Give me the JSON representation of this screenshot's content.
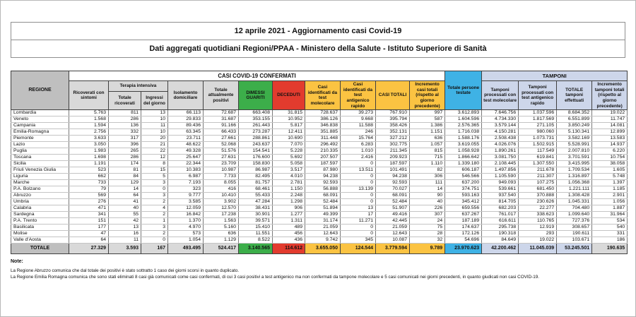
{
  "title": {
    "line1": "12 aprile 2021 - Aggiornamento casi Covid-19",
    "line2": "Dati aggregati quotidiani Regioni/PPAA - Ministero della Salute - Istituto Superiore di Sanità"
  },
  "colors": {
    "green": "#3cae4a",
    "red": "#e23b2e",
    "yellow": "#fbc342",
    "blue": "#3fb2e5",
    "light_blue": "#cdd6ea",
    "grey_header": "#bfbfbf",
    "grey_light": "#d9d9d9"
  },
  "table": {
    "band_confermati": "CASI COVID-19 CONFERMATI",
    "band_tamponi": "TAMPONI",
    "headers": {
      "regione": "REGIONE",
      "ricoverati": "Ricoverati con sintomi",
      "terapia_intensiva": "Terapia intensiva",
      "ti_totale": "Totale ricoverati",
      "ti_ingressi": "Ingressi del giorno",
      "isolamento": "Isolamento domiciliare",
      "attualmente_positivi": "Totale attualmente positivi",
      "dimessi": "DIMESSI GUARITI",
      "deceduti": "DECEDUTI",
      "casi_molecolare": "Casi identificati da test molecolare",
      "casi_antigenico": "Casi identificati da test antigenico rapido",
      "casi_totali": "CASI TOTALI",
      "incremento_casi": "Incremento casi totali (rispetto al giorno precedente)",
      "persone_testate": "Totale persone testate",
      "tamponi_molecolare": "Tamponi processati con test molecolare",
      "tamponi_antigenico": "Tamponi processati con test antigenico rapido",
      "tamponi_totale": "TOTALE tamponi effettuati",
      "incremento_tamponi": "Incremento tamponi totali (rispetto al giorno precedente)"
    },
    "rows": [
      [
        "Lombardia",
        "5.763",
        "811",
        "13",
        "66.113",
        "72.687",
        "663.408",
        "31.815",
        "728.637",
        "39.273",
        "767.910",
        "997",
        "3.612.893",
        "7.646.756",
        "1.037.596",
        "8.684.352",
        "19.022"
      ],
      [
        "Veneto",
        "1.568",
        "286",
        "10",
        "29.833",
        "31.687",
        "353.155",
        "10.952",
        "386.126",
        "9.668",
        "395.794",
        "587",
        "1.604.596",
        "4.734.330",
        "1.817.569",
        "6.551.899",
        "11.747"
      ],
      [
        "Campania",
        "1.594",
        "136",
        "11",
        "89.436",
        "91.166",
        "261.443",
        "5.817",
        "346.838",
        "11.588",
        "358.426",
        "1.386",
        "2.576.365",
        "3.579.144",
        "271.105",
        "3.850.249",
        "14.081"
      ],
      [
        "Emilia-Romagna",
        "2.756",
        "332",
        "10",
        "63.345",
        "66.433",
        "273.287",
        "12.411",
        "351.885",
        "246",
        "352.131",
        "1.151",
        "1.716.038",
        "4.150.281",
        "980.060",
        "5.130.341",
        "12.899"
      ],
      [
        "Piemonte",
        "3.633",
        "317",
        "20",
        "23.711",
        "27.661",
        "288.861",
        "10.690",
        "311.448",
        "15.764",
        "327.212",
        "636",
        "1.588.176",
        "2.508.438",
        "1.073.731",
        "3.582.169",
        "13.583"
      ],
      [
        "Lazio",
        "3.050",
        "396",
        "21",
        "48.622",
        "52.068",
        "243.637",
        "7.070",
        "296.492",
        "6.283",
        "302.775",
        "1.057",
        "3.619.055",
        "4.026.076",
        "1.502.915",
        "5.528.991",
        "14.937"
      ],
      [
        "Puglia",
        "1.983",
        "265",
        "22",
        "49.328",
        "51.576",
        "154.541",
        "5.228",
        "210.335",
        "1.010",
        "211.345",
        "815",
        "1.058.928",
        "1.890.261",
        "117.549",
        "2.007.810",
        "6.220"
      ],
      [
        "Toscana",
        "1.698",
        "286",
        "12",
        "25.647",
        "27.631",
        "176.600",
        "5.692",
        "207.507",
        "2.416",
        "209.923",
        "715",
        "1.866.642",
        "3.081.750",
        "619.841",
        "3.701.591",
        "10.754"
      ],
      [
        "Sicilia",
        "1.191",
        "174",
        "8",
        "22.344",
        "23.709",
        "158.830",
        "5.058",
        "187.597",
        "0",
        "187.597",
        "1.110",
        "1.339.180",
        "2.108.445",
        "1.307.550",
        "3.415.995",
        "38.058"
      ],
      [
        "Friuli Venezia Giulia",
        "523",
        "81",
        "15",
        "10.383",
        "10.987",
        "86.987",
        "3.517",
        "87.980",
        "13.511",
        "101.491",
        "82",
        "606.187",
        "1.497.856",
        "211.678",
        "1.709.534",
        "1.605"
      ],
      [
        "Liguria",
        "662",
        "84",
        "5",
        "6.987",
        "7.733",
        "82.495",
        "4.010",
        "94.238",
        "0",
        "94.238",
        "306",
        "546.566",
        "1.105.590",
        "211.307",
        "1.316.897",
        "5.748"
      ],
      [
        "Marche",
        "733",
        "129",
        "3",
        "7.193",
        "8.055",
        "81.757",
        "2.781",
        "92.593",
        "0",
        "92.593",
        "111",
        "637.200",
        "949.093",
        "107.275",
        "1.056.368",
        "1.397"
      ],
      [
        "P.A. Bolzano",
        "79",
        "14",
        "0",
        "323",
        "416",
        "68.461",
        "1.150",
        "56.888",
        "13.139",
        "70.027",
        "14",
        "374.751",
        "539.661",
        "681.450",
        "1.221.111",
        "1.185"
      ],
      [
        "Abruzzo",
        "569",
        "64",
        "3",
        "9.777",
        "10.410",
        "55.433",
        "2.248",
        "68.091",
        "0",
        "68.091",
        "90",
        "593.163",
        "937.540",
        "370.888",
        "1.308.428",
        "2.901"
      ],
      [
        "Umbria",
        "276",
        "41",
        "2",
        "3.585",
        "3.902",
        "47.284",
        "1.298",
        "52.484",
        "0",
        "52.484",
        "40",
        "345.412",
        "814.705",
        "230.626",
        "1.045.331",
        "1.056"
      ],
      [
        "Calabria",
        "471",
        "40",
        "4",
        "12.059",
        "12.570",
        "38.431",
        "906",
        "51.894",
        "13",
        "51.907",
        "226",
        "659.556",
        "682.203",
        "22.277",
        "704.480",
        "1.887"
      ],
      [
        "Sardegna",
        "341",
        "55",
        "2",
        "16.842",
        "17.238",
        "30.901",
        "1.277",
        "49.399",
        "17",
        "49.416",
        "307",
        "637.267",
        "761.017",
        "338.623",
        "1.099.640",
        "31.964"
      ],
      [
        "P.A. Trento",
        "151",
        "42",
        "1",
        "1.370",
        "1.563",
        "39.571",
        "1.311",
        "31.174",
        "11.271",
        "42.445",
        "24",
        "187.189",
        "616.611",
        "110.765",
        "727.376",
        "534"
      ],
      [
        "Basilicata",
        "177",
        "13",
        "3",
        "4.970",
        "5.160",
        "15.410",
        "489",
        "21.059",
        "0",
        "21.059",
        "75",
        "174.637",
        "295.738",
        "12.919",
        "308.657",
        "540"
      ],
      [
        "Molise",
        "47",
        "16",
        "2",
        "573",
        "636",
        "11.551",
        "456",
        "12.643",
        "0",
        "12.643",
        "28",
        "172.126",
        "190.318",
        "293",
        "190.611",
        "331"
      ],
      [
        "Valle d'Aosta",
        "64",
        "11",
        "0",
        "1.054",
        "1.129",
        "8.522",
        "436",
        "9.742",
        "345",
        "10.087",
        "32",
        "54.696",
        "84.649",
        "19.022",
        "103.671",
        "186"
      ]
    ],
    "total": [
      "TOTALE",
      "27.329",
      "3.593",
      "167",
      "493.495",
      "524.417",
      "3.140.565",
      "114.612",
      "3.655.050",
      "124.544",
      "3.779.594",
      "9.789",
      "23.970.623",
      "42.200.462",
      "11.045.039",
      "53.245.501",
      "190.635"
    ]
  },
  "notes": {
    "label": "Note:",
    "lines": [
      "La Regione Abruzzo comunica che dal totale dei positivi è stato sottratto 1 caso dei giorni scorsi in quanto duplicato.",
      "La Regione Emilia Romagna comunica che sono stati eliminati 8 casi già comunicati come casi confermati, di cui 3 casi positivi a test antigenico ma non confermati da tampone molecolare e 5 casi comunicati nei giorni precedenti, in quanto giudicati non casi COVID-19."
    ]
  }
}
